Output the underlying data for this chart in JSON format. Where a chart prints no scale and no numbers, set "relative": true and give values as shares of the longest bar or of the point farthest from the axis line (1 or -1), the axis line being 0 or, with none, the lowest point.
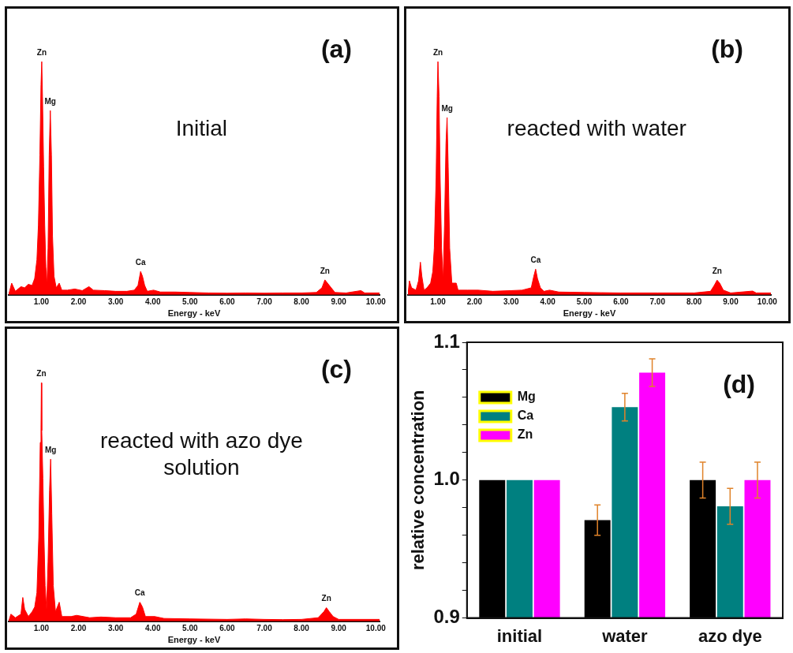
{
  "chart_data": [
    {
      "type": "area",
      "xlabel": "Energy - keV",
      "relative": true,
      "color": "#ff0000",
      "x": [
        0.12,
        0.2,
        0.3,
        0.45,
        0.55,
        0.65,
        0.75,
        0.82,
        0.88,
        0.92,
        0.96,
        0.99,
        1.01,
        1.03,
        1.06,
        1.09,
        1.12,
        1.15,
        1.18,
        1.21,
        1.24,
        1.27,
        1.3,
        1.34,
        1.4,
        1.48,
        1.55,
        1.7,
        1.9,
        2.1,
        2.28,
        2.4,
        2.7,
        3.0,
        3.3,
        3.5,
        3.6,
        3.67,
        3.72,
        3.78,
        3.85,
        4.02,
        4.2,
        4.6,
        5.0,
        5.5,
        6.0,
        6.5,
        7.0,
        7.5,
        8.0,
        8.4,
        8.55,
        8.63,
        8.7,
        8.8,
        8.9,
        9.2,
        9.6,
        9.7,
        10.1
      ],
      "values": [
        0.0,
        0.05,
        0.015,
        0.035,
        0.03,
        0.045,
        0.04,
        0.07,
        0.15,
        0.3,
        0.6,
        0.9,
        1.0,
        0.85,
        0.55,
        0.3,
        0.12,
        0.04,
        0.2,
        0.6,
        0.79,
        0.6,
        0.25,
        0.08,
        0.03,
        0.05,
        0.02,
        0.02,
        0.025,
        0.018,
        0.035,
        0.02,
        0.018,
        0.015,
        0.015,
        0.02,
        0.04,
        0.1,
        0.08,
        0.04,
        0.015,
        0.02,
        0.012,
        0.012,
        0.01,
        0.008,
        0.007,
        0.008,
        0.007,
        0.008,
        0.008,
        0.01,
        0.03,
        0.064,
        0.05,
        0.03,
        0.01,
        0.008,
        0.018,
        0.008,
        0.008
      ],
      "xlim": [
        0.12,
        10.1
      ],
      "xticks": [
        {
          "value": 1,
          "label": "1.00"
        },
        {
          "value": 2,
          "label": "2.00"
        },
        {
          "value": 3,
          "label": "3.00"
        },
        {
          "value": 4,
          "label": "4.00"
        },
        {
          "value": 5,
          "label": "5.00"
        },
        {
          "value": 6,
          "label": "6.00"
        },
        {
          "value": 7,
          "label": "7.00"
        },
        {
          "value": 8,
          "label": "8.00"
        },
        {
          "value": 9,
          "label": "9.00"
        },
        {
          "value": 10,
          "label": "10.00"
        }
      ],
      "annotations": [
        {
          "text": "Zn",
          "x": 1.01,
          "y": 1.0
        },
        {
          "text": "Mg",
          "x": 1.24,
          "y": 0.79
        },
        {
          "text": "Ca",
          "x": 3.67,
          "y": 0.1
        },
        {
          "text": "Zn",
          "x": 8.63,
          "y": 0.064
        },
        "(a)",
        "Initial"
      ]
    },
    {
      "type": "area",
      "xlabel": "Energy - keV",
      "relative": true,
      "color": "#ff0000",
      "x": [
        0.18,
        0.22,
        0.28,
        0.4,
        0.47,
        0.52,
        0.56,
        0.62,
        0.7,
        0.8,
        0.86,
        0.9,
        0.95,
        0.98,
        1.0,
        1.03,
        1.06,
        1.1,
        1.14,
        1.18,
        1.22,
        1.25,
        1.28,
        1.32,
        1.38,
        1.5,
        1.55,
        1.8,
        2.1,
        2.5,
        3.0,
        3.3,
        3.55,
        3.62,
        3.67,
        3.72,
        3.8,
        3.9,
        4.05,
        4.3,
        5.0,
        6.0,
        7.0,
        8.0,
        8.45,
        8.55,
        8.63,
        8.7,
        8.8,
        9.0,
        9.6,
        9.7,
        10.1
      ],
      "values": [
        0.0,
        0.06,
        0.03,
        0.02,
        0.06,
        0.14,
        0.08,
        0.02,
        0.03,
        0.05,
        0.1,
        0.2,
        0.5,
        0.85,
        1.0,
        0.85,
        0.5,
        0.2,
        0.06,
        0.3,
        0.65,
        0.76,
        0.55,
        0.2,
        0.05,
        0.05,
        0.02,
        0.02,
        0.02,
        0.015,
        0.018,
        0.02,
        0.03,
        0.08,
        0.11,
        0.07,
        0.03,
        0.015,
        0.02,
        0.012,
        0.01,
        0.008,
        0.008,
        0.008,
        0.015,
        0.04,
        0.063,
        0.05,
        0.02,
        0.008,
        0.016,
        0.008,
        0.008
      ],
      "xlim": [
        0.18,
        10.1
      ],
      "xticks": [
        {
          "value": 1,
          "label": "1.00"
        },
        {
          "value": 2,
          "label": "2.00"
        },
        {
          "value": 3,
          "label": "3.00"
        },
        {
          "value": 4,
          "label": "4.00"
        },
        {
          "value": 5,
          "label": "5.00"
        },
        {
          "value": 6,
          "label": "6.00"
        },
        {
          "value": 7,
          "label": "7.00"
        },
        {
          "value": 8,
          "label": "8.00"
        },
        {
          "value": 9,
          "label": "9.00"
        },
        {
          "value": 10,
          "label": "10.00"
        }
      ],
      "annotations": [
        {
          "text": "Zn",
          "x": 1.0,
          "y": 1.0
        },
        {
          "text": "Mg",
          "x": 1.25,
          "y": 0.76
        },
        {
          "text": "Ca",
          "x": 3.67,
          "y": 0.11
        },
        {
          "text": "Zn",
          "x": 8.63,
          "y": 0.063
        },
        "(b)",
        "reacted with water"
      ]
    },
    {
      "type": "area",
      "xlabel": "Energy - keV",
      "relative": true,
      "color": "#ff0000",
      "x": [
        0.12,
        0.18,
        0.3,
        0.45,
        0.5,
        0.55,
        0.65,
        0.75,
        0.82,
        0.88,
        0.93,
        0.97,
        0.99,
        1.0,
        1.01,
        1.04,
        1.07,
        1.1,
        1.14,
        1.18,
        1.22,
        1.25,
        1.28,
        1.32,
        1.38,
        1.48,
        1.55,
        1.8,
        1.95,
        2.3,
        2.6,
        3.0,
        3.4,
        3.55,
        3.65,
        3.72,
        3.8,
        4.05,
        4.3,
        5.0,
        6.0,
        6.5,
        7.0,
        7.5,
        8.0,
        8.45,
        8.6,
        8.67,
        8.75,
        8.85,
        9.0,
        10.1
      ],
      "values": [
        0.0,
        0.03,
        0.015,
        0.03,
        0.1,
        0.05,
        0.02,
        0.04,
        0.06,
        0.12,
        0.35,
        0.75,
        0.81,
        1.0,
        0.8,
        0.6,
        0.35,
        0.15,
        0.05,
        0.25,
        0.55,
        0.68,
        0.45,
        0.15,
        0.04,
        0.08,
        0.02,
        0.02,
        0.025,
        0.015,
        0.018,
        0.015,
        0.015,
        0.03,
        0.08,
        0.06,
        0.02,
        0.02,
        0.012,
        0.01,
        0.008,
        0.01,
        0.008,
        0.007,
        0.008,
        0.015,
        0.04,
        0.057,
        0.04,
        0.02,
        0.008,
        0.008
      ],
      "xlim": [
        0.12,
        10.1
      ],
      "xticks": [
        {
          "value": 1,
          "label": "1.00"
        },
        {
          "value": 2,
          "label": "2.00"
        },
        {
          "value": 3,
          "label": "3.00"
        },
        {
          "value": 4,
          "label": "4.00"
        },
        {
          "value": 5,
          "label": "5.00"
        },
        {
          "value": 6,
          "label": "6.00"
        },
        {
          "value": 7,
          "label": "7.00"
        },
        {
          "value": 8,
          "label": "8.00"
        },
        {
          "value": 9,
          "label": "9.00"
        },
        {
          "value": 10,
          "label": "10.00"
        }
      ],
      "annotations": [
        {
          "text": "Zn",
          "x": 1.0,
          "y": 1.0
        },
        {
          "text": "Mg",
          "x": 1.25,
          "y": 0.68
        },
        {
          "text": "Ca",
          "x": 3.65,
          "y": 0.08
        },
        {
          "text": "Zn",
          "x": 8.67,
          "y": 0.057
        },
        "(c)",
        "reacted with azo dye solution"
      ]
    },
    {
      "type": "bar",
      "ylabel": "relative concentration",
      "categories": [
        "initial",
        "water",
        "azo dye"
      ],
      "series": [
        {
          "name": "Mg",
          "color": "#000000",
          "values": [
            1.0,
            0.971,
            1.0
          ],
          "errors": [
            null,
            0.011,
            0.013
          ]
        },
        {
          "name": "Ca",
          "color": "#008080",
          "values": [
            1.0,
            1.053,
            0.981
          ],
          "errors": [
            null,
            0.01,
            0.013
          ]
        },
        {
          "name": "Zn",
          "color": "#ff00ff",
          "values": [
            1.0,
            1.078,
            1.0
          ],
          "errors": [
            null,
            0.01,
            0.013
          ]
        }
      ],
      "ylim": [
        0.9,
        1.1
      ],
      "yticks": [
        0.9,
        {
          "value": 0.92,
          "label": null
        },
        {
          "value": 0.94,
          "label": null
        },
        {
          "value": 0.96,
          "label": null
        },
        {
          "value": 0.98,
          "label": null
        },
        {
          "value": 1.0,
          "label": "1.0"
        },
        {
          "value": 1.02,
          "label": null
        },
        {
          "value": 1.04,
          "label": null
        },
        {
          "value": 1.06,
          "label": null
        },
        {
          "value": 1.08,
          "label": null
        },
        1.1
      ],
      "legend": "top left",
      "annotations": [
        "(d)"
      ]
    }
  ]
}
